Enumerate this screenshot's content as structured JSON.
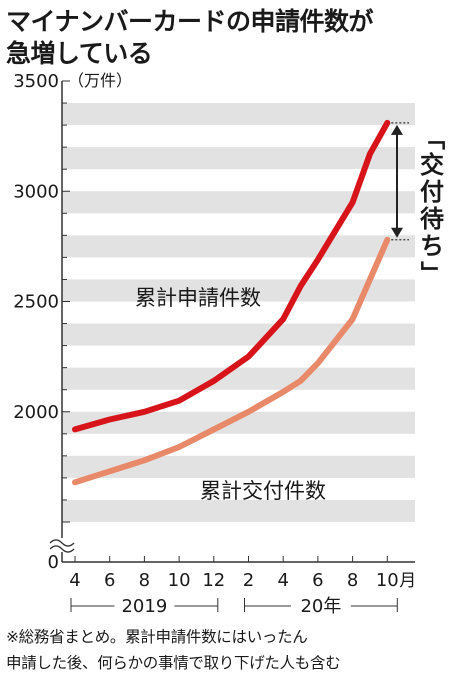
{
  "title_lines": [
    "マイナンバーカードの申請件数が",
    "急増している"
  ],
  "note_lines": [
    "※総務省まとめ。累計申請件数にはいったん",
    "申請した後、何らかの事情で取り下げた人も含む"
  ],
  "chart_data": {
    "type": "line",
    "title": "マイナンバーカードの申請件数が急増している",
    "unit_label": "（万件）",
    "x_tick_labels": [
      "4",
      "6",
      "8",
      "10",
      "12",
      "2",
      "4",
      "6",
      "8",
      "10"
    ],
    "x_month_suffix": "月",
    "year_labels": [
      "2019",
      "20年"
    ],
    "y_ticks": [
      0,
      2000,
      2500,
      3000,
      3500
    ],
    "y_tick_labels": [
      "0",
      "2000",
      "2500",
      "3000",
      "3500"
    ],
    "ylim": [
      1500,
      3500
    ],
    "axis_break": true,
    "grid": "horizontal stripes",
    "annotation": "「交付待ち」",
    "colors": {
      "applications": "#d7141a",
      "issued": "#e8896a",
      "stripe": "#e2e2e2",
      "text": "#1a1a1a"
    },
    "series": [
      {
        "name": "累計申請件数",
        "points": [
          [
            "2019-04",
            1920
          ],
          [
            "2019-06",
            1965
          ],
          [
            "2019-08",
            2000
          ],
          [
            "2019-10",
            2050
          ],
          [
            "2019-12",
            2140
          ],
          [
            "2020-02",
            2250
          ],
          [
            "2020-04",
            2420
          ],
          [
            "2020-05",
            2570
          ],
          [
            "2020-06",
            2690
          ],
          [
            "2020-08",
            2950
          ],
          [
            "2020-09",
            3170
          ],
          [
            "2020-10",
            3310
          ]
        ]
      },
      {
        "name": "累計交付件数",
        "points": [
          [
            "2019-04",
            1680
          ],
          [
            "2019-06",
            1730
          ],
          [
            "2019-08",
            1780
          ],
          [
            "2019-10",
            1840
          ],
          [
            "2019-12",
            1920
          ],
          [
            "2020-02",
            2000
          ],
          [
            "2020-04",
            2090
          ],
          [
            "2020-05",
            2140
          ],
          [
            "2020-06",
            2220
          ],
          [
            "2020-08",
            2420
          ],
          [
            "2020-10",
            2780
          ]
        ]
      }
    ]
  }
}
